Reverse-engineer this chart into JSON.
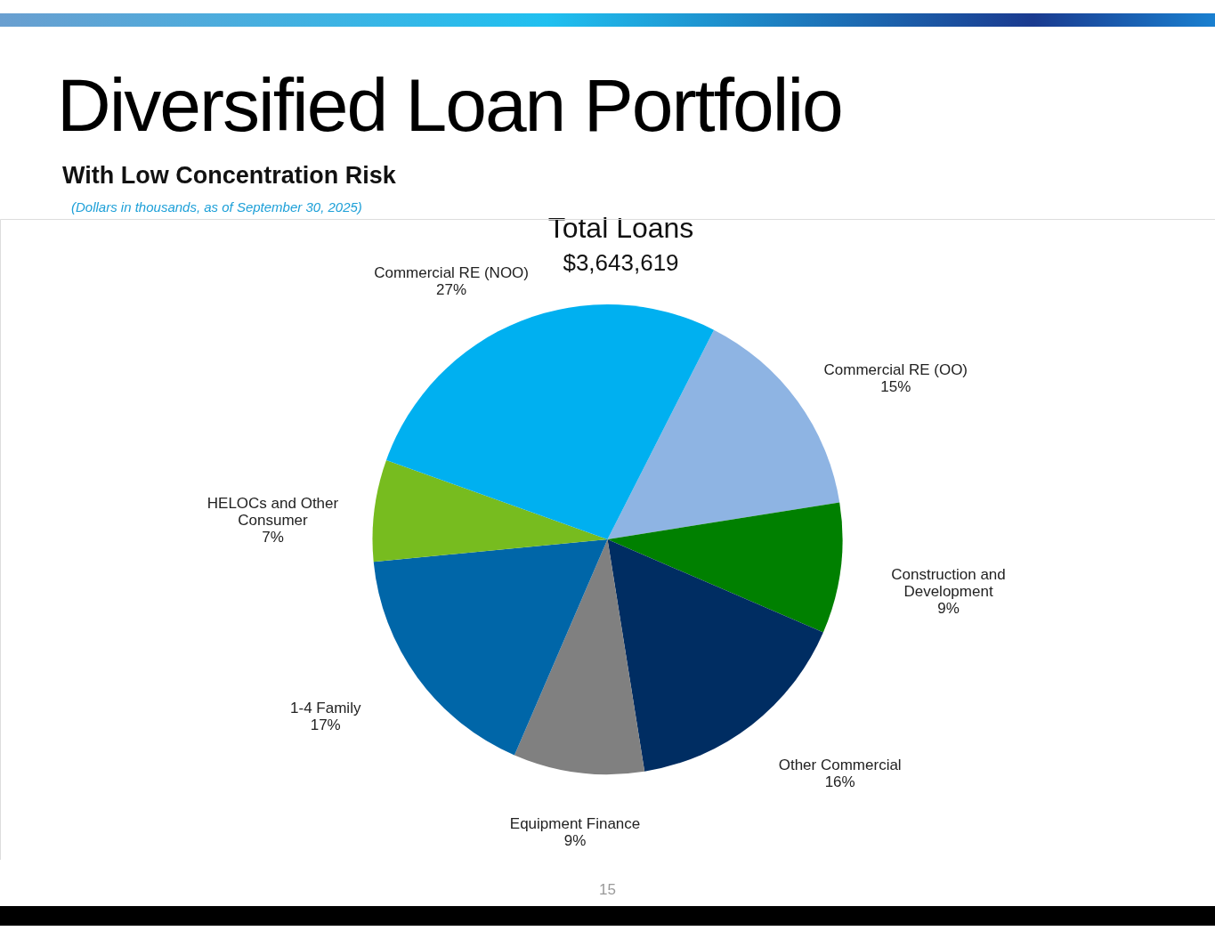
{
  "chart_data": {
    "type": "pie",
    "title": "Diversified Loan Portfolio",
    "subtitle": "With Low Concentration Risk",
    "annotations": [
      "(Dollars in thousands, as of September 30, 2025)",
      "Total Loans",
      "$3,643,619",
      "15"
    ],
    "categories": [
      "Commercial RE (OO)",
      "Construction and Development",
      "Other Commercial",
      "Equipment Finance",
      "1-4 Family",
      "HELOCs and Other Consumer",
      "Commercial RE (NOO)"
    ],
    "values": [
      15,
      9,
      16,
      9,
      17,
      7,
      27
    ],
    "value_labels": [
      "15%",
      "9%",
      "16%",
      "9%",
      "17%",
      "7%",
      "27%"
    ],
    "colors": [
      "#8eb4e3",
      "#008000",
      "#002d62",
      "#808080",
      "#0066a8",
      "#77bc1f",
      "#00b0f0"
    ]
  }
}
